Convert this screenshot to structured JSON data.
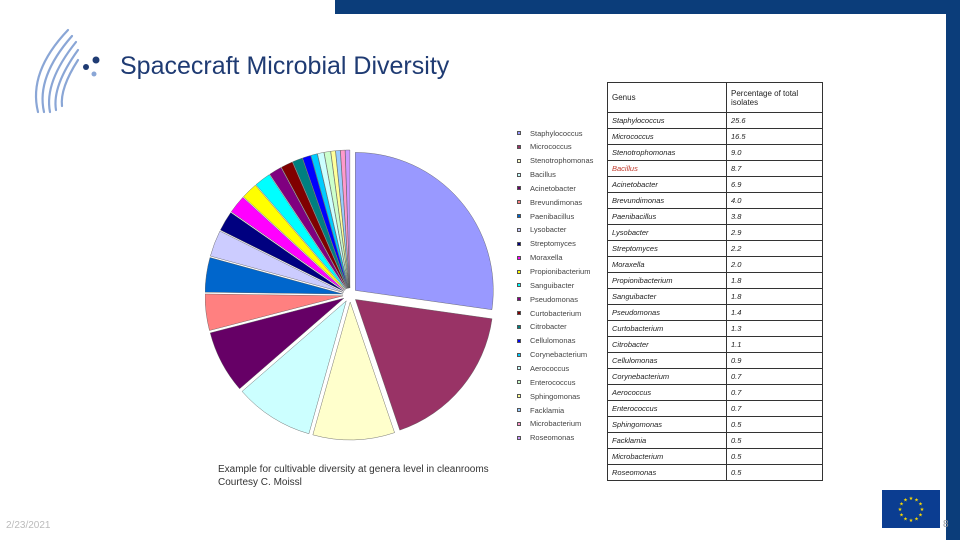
{
  "slide": {
    "title": "Spacecraft Microbial Diversity",
    "caption_line1": "Example for cultivable diversity at genera level in cleanrooms",
    "caption_line2": "Courtesy C. Moissl",
    "date": "2/23/2021",
    "page_number": "8"
  },
  "table": {
    "header_genus": "Genus",
    "header_percentage": "Percentage of total isolates",
    "rows": [
      {
        "genus": "Staphylococcus",
        "value": "25.6"
      },
      {
        "genus": "Micrococcus",
        "value": "16.5"
      },
      {
        "genus": "Stenotrophomonas",
        "value": "9.0"
      },
      {
        "genus": "Bacillus",
        "value": "8.7"
      },
      {
        "genus": "Acinetobacter",
        "value": "6.9"
      },
      {
        "genus": "Brevundimonas",
        "value": "4.0"
      },
      {
        "genus": "Paenibacillus",
        "value": "3.8"
      },
      {
        "genus": "Lysobacter",
        "value": "2.9"
      },
      {
        "genus": "Streptomyces",
        "value": "2.2"
      },
      {
        "genus": "Moraxella",
        "value": "2.0"
      },
      {
        "genus": "Propionibacterium",
        "value": "1.8"
      },
      {
        "genus": "Sanguibacter",
        "value": "1.8"
      },
      {
        "genus": "Pseudomonas",
        "value": "1.4"
      },
      {
        "genus": "Curtobacterium",
        "value": "1.3"
      },
      {
        "genus": "Citrobacter",
        "value": "1.1"
      },
      {
        "genus": "Cellulomonas",
        "value": "0.9"
      },
      {
        "genus": "Corynebacterium",
        "value": "0.7"
      },
      {
        "genus": "Aerococcus",
        "value": "0.7"
      },
      {
        "genus": "Enterococcus",
        "value": "0.7"
      },
      {
        "genus": "Sphingomonas",
        "value": "0.5"
      },
      {
        "genus": "Facklamia",
        "value": "0.5"
      },
      {
        "genus": "Microbacterium",
        "value": "0.5"
      },
      {
        "genus": "Roseomonas",
        "value": "0.5"
      }
    ]
  },
  "chart_data": {
    "type": "pie",
    "title": "",
    "categories": [
      "Staphylococcus",
      "Micrococcus",
      "Stenotrophomonas",
      "Bacillus",
      "Acinetobacter",
      "Brevundimonas",
      "Paenibacillus",
      "Lysobacter",
      "Streptomyces",
      "Moraxella",
      "Propionibacterium",
      "Sanguibacter",
      "Pseudomonas",
      "Curtobacterium",
      "Citrobacter",
      "Cellulomonas",
      "Corynebacterium",
      "Aerococcus",
      "Enterococcus",
      "Sphingomonas",
      "Facklamia",
      "Microbacterium",
      "Roseomonas"
    ],
    "legend_labels": [
      "Staphylococcus",
      "Micrococcus",
      "Stenotrophomonas",
      "Bacillus",
      "Acinetobacter",
      "Brevundimonas",
      "Paenibacillus",
      "Lysobacter",
      "Streptomyces",
      "Moraxella",
      "Propionibacterium",
      "Sanguibacter",
      "Pseudomonas",
      "Curtobacterium",
      "Citrobacter",
      "Cellulomonas",
      "Corynebacterium",
      "Aerococcus",
      "Enterococcus",
      "Sphingomonas",
      "Facklamia",
      "Microbacterium",
      "Roseomonas"
    ],
    "values": [
      25.6,
      16.5,
      9.0,
      8.7,
      6.9,
      4.0,
      3.8,
      2.9,
      2.2,
      2.0,
      1.8,
      1.8,
      1.4,
      1.3,
      1.1,
      0.9,
      0.7,
      0.7,
      0.7,
      0.5,
      0.5,
      0.5,
      0.5
    ],
    "colors": [
      "#9999ff",
      "#993366",
      "#ffffcc",
      "#ccffff",
      "#660066",
      "#ff8080",
      "#0066cc",
      "#ccccff",
      "#000080",
      "#ff00ff",
      "#ffff00",
      "#00ffff",
      "#800080",
      "#800000",
      "#008080",
      "#0000ff",
      "#00ccff",
      "#ccffff",
      "#ccffcc",
      "#ffff99",
      "#99ccff",
      "#ff99cc",
      "#cc99ff"
    ],
    "legend_position": "right"
  }
}
